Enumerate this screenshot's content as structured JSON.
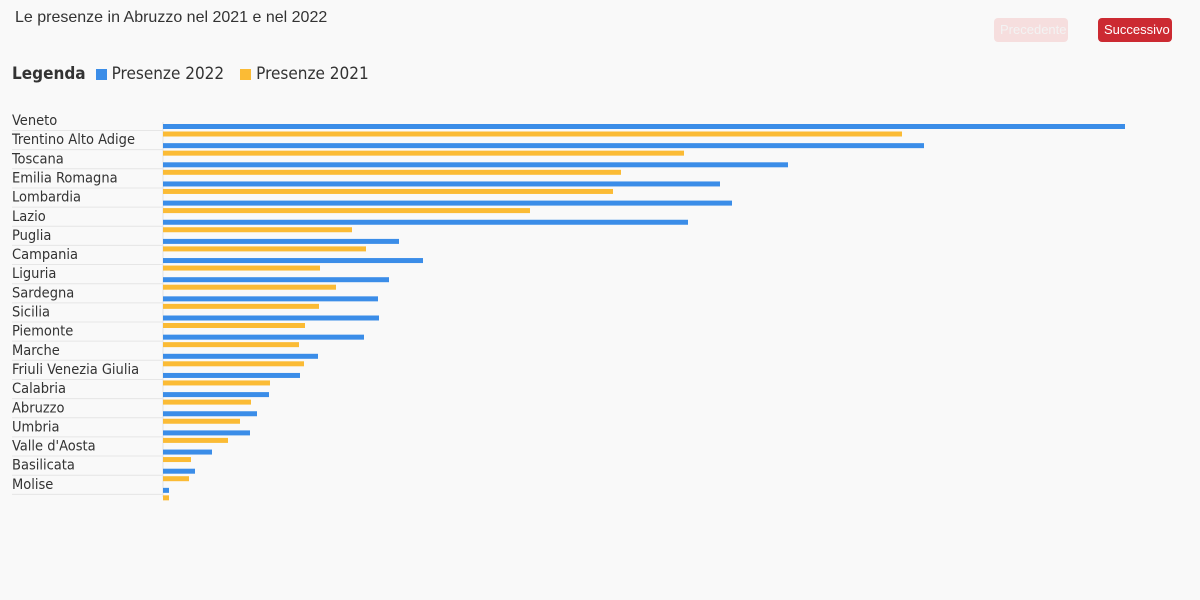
{
  "header": {
    "title": "Le presenze in Abruzzo nel 2021 e nel 2022",
    "prev_label": "Precedente",
    "next_label": "Successivo"
  },
  "legend": {
    "title": "Legenda",
    "items": [
      {
        "label": "Presenze 2022",
        "color": "#3b8de8"
      },
      {
        "label": "Presenze 2021",
        "color": "#fbbb35"
      }
    ]
  },
  "chart_data": {
    "type": "bar",
    "orientation": "horizontal",
    "categories": [
      "Veneto",
      "Trentino Alto Adige",
      "Toscana",
      "Emilia Romagna",
      "Lombardia",
      "Lazio",
      "Puglia",
      "Campania",
      "Liguria",
      "Sardegna",
      "Sicilia",
      "Piemonte",
      "Marche",
      "Friuli Venezia Giulia",
      "Calabria",
      "Abruzzo",
      "Umbria",
      "Valle d'Aosta",
      "Basilicata",
      "Molise"
    ],
    "series": [
      {
        "name": "Presenze 2022",
        "color": "#3b8de8",
        "values": [
          962,
          761,
          625,
          557,
          569,
          525,
          236,
          260,
          226,
          215,
          216,
          201,
          155,
          137,
          106,
          94,
          87,
          49,
          32,
          6
        ]
      },
      {
        "name": "Presenze 2021",
        "color": "#fbbb35",
        "values": [
          739,
          521,
          458,
          450,
          367,
          189,
          203,
          157,
          173,
          156,
          142,
          136,
          141,
          107,
          88,
          77,
          65,
          28,
          26,
          6
        ]
      }
    ],
    "xlim": [
      0,
      1000
    ],
    "grid": false,
    "legend": "top-left"
  }
}
